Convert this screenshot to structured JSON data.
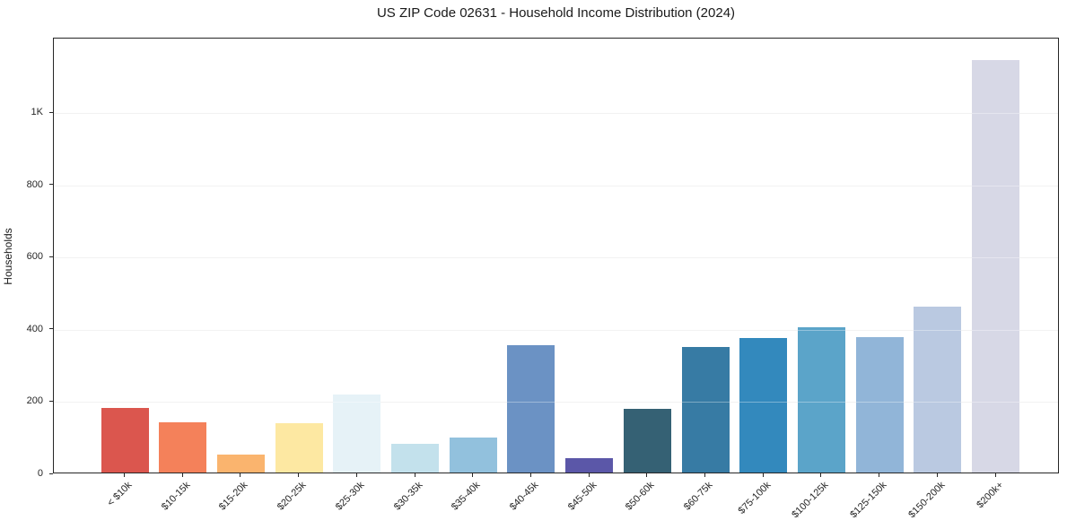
{
  "chart_data": {
    "type": "bar",
    "title": "US ZIP Code 02631 - Household Income Distribution (2024)",
    "xlabel": "",
    "ylabel": "Households",
    "categories": [
      "< $10k",
      "$10-15k",
      "$15-20k",
      "$20-25k",
      "$25-30k",
      "$30-35k",
      "$35-40k",
      "$40-45k",
      "$45-50k",
      "$50-60k",
      "$60-75k",
      "$75-100k",
      "$100-125k",
      "$125-150k",
      "$150-200k",
      "$200k+"
    ],
    "values": [
      178,
      139,
      50,
      136,
      217,
      80,
      96,
      352,
      40,
      176,
      348,
      373,
      401,
      375,
      459,
      1141
    ],
    "bar_colors": [
      "#db564e",
      "#f4815a",
      "#fab46e",
      "#fde8a2",
      "#e6f2f7",
      "#c3e1ec",
      "#92c1dd",
      "#6b92c4",
      "#5b57a8",
      "#356174",
      "#377ba4",
      "#3389bd",
      "#5ba4c9",
      "#91b5d8",
      "#bac9e1",
      "#d7d8e6"
    ],
    "ylim": [
      0,
      1206
    ],
    "yticks": [
      {
        "value": 0,
        "label": "0"
      },
      {
        "value": 200,
        "label": "200"
      },
      {
        "value": 400,
        "label": "400"
      },
      {
        "value": 600,
        "label": "600"
      },
      {
        "value": 800,
        "label": "800"
      },
      {
        "value": 1000,
        "label": "1K"
      }
    ],
    "grid": "horizontal",
    "legend_position": "none",
    "x_tick_rotation_deg": 45,
    "background_color": "#ffffff",
    "frame_color": "#262626",
    "gridline_color": "#ebebeb"
  }
}
